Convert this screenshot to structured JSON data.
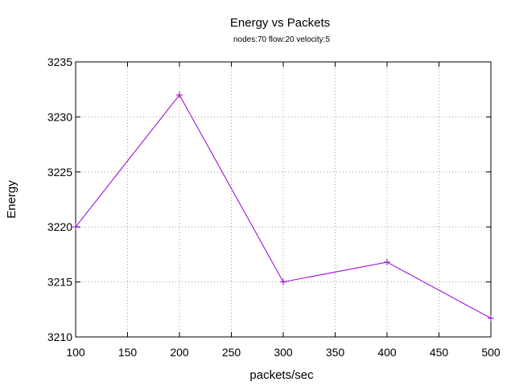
{
  "chart_data": {
    "type": "line",
    "title": "Energy vs Packets",
    "subtitle": "nodes:70  flow:20  velocity:5",
    "xlabel": "packets/sec",
    "ylabel": "Energy",
    "xlim": [
      100,
      500
    ],
    "ylim": [
      3210,
      3235
    ],
    "xticks": [
      100,
      150,
      200,
      250,
      300,
      350,
      400,
      450,
      500
    ],
    "yticks": [
      3210,
      3215,
      3220,
      3225,
      3230,
      3235
    ],
    "grid": true,
    "marker": "plus",
    "series": [
      {
        "color": "#9400d3",
        "x": [
          100,
          200,
          300,
          400,
          500
        ],
        "y": [
          3220.0,
          3232.0,
          3215.0,
          3216.8,
          3211.7
        ]
      }
    ]
  }
}
